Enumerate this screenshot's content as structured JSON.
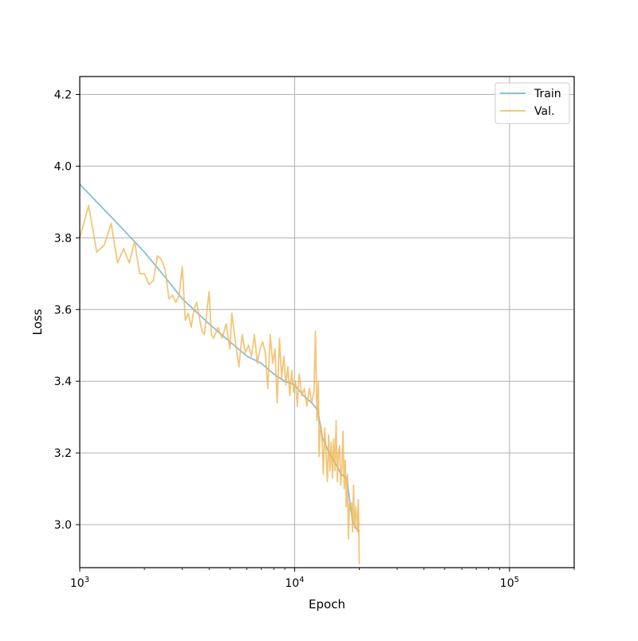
{
  "chart_data": {
    "type": "line",
    "title": "",
    "xlabel": "Epoch",
    "ylabel": "Loss",
    "xscale": "log",
    "xlim": [
      1000,
      200000
    ],
    "ylim": [
      2.88,
      4.25
    ],
    "grid": true,
    "legend_position": "top-right",
    "x_tick_labels": [
      {
        "value": 1000,
        "base": "10",
        "exp": "3"
      },
      {
        "value": 10000,
        "base": "10",
        "exp": "4"
      },
      {
        "value": 100000,
        "base": "10",
        "exp": "5"
      }
    ],
    "y_ticks": [
      3.0,
      3.2,
      3.4,
      3.6,
      3.8,
      4.0,
      4.2
    ],
    "y_tick_labels": [
      "3.0",
      "3.2",
      "3.4",
      "3.6",
      "3.8",
      "4.0",
      "4.2"
    ],
    "series": [
      {
        "name": "Train",
        "color": "#6baed6",
        "points": [
          [
            1000,
            3.95
          ],
          [
            1200,
            3.9
          ],
          [
            1500,
            3.84
          ],
          [
            2000,
            3.76
          ],
          [
            2500,
            3.69
          ],
          [
            3000,
            3.63
          ],
          [
            4000,
            3.56
          ],
          [
            5000,
            3.51
          ],
          [
            6000,
            3.47
          ],
          [
            7000,
            3.45
          ],
          [
            8000,
            3.42
          ],
          [
            9000,
            3.4
          ],
          [
            10000,
            3.39
          ],
          [
            11000,
            3.36
          ],
          [
            12000,
            3.34
          ],
          [
            12800,
            3.32
          ],
          [
            13500,
            3.24
          ],
          [
            14500,
            3.2
          ],
          [
            15500,
            3.17
          ],
          [
            16500,
            3.14
          ],
          [
            17500,
            3.13
          ],
          [
            18200,
            3.05
          ],
          [
            18600,
            3.01
          ],
          [
            19300,
            2.99
          ],
          [
            20000,
            2.98
          ]
        ]
      },
      {
        "name": "Val.",
        "color": "#f0b95a",
        "points": [
          [
            1000,
            3.8
          ],
          [
            1100,
            3.89
          ],
          [
            1200,
            3.76
          ],
          [
            1300,
            3.78
          ],
          [
            1400,
            3.84
          ],
          [
            1500,
            3.73
          ],
          [
            1600,
            3.77
          ],
          [
            1700,
            3.73
          ],
          [
            1800,
            3.79
          ],
          [
            1900,
            3.7
          ],
          [
            2000,
            3.7
          ],
          [
            2100,
            3.67
          ],
          [
            2200,
            3.68
          ],
          [
            2300,
            3.75
          ],
          [
            2400,
            3.74
          ],
          [
            2500,
            3.71
          ],
          [
            2600,
            3.63
          ],
          [
            2700,
            3.64
          ],
          [
            2800,
            3.62
          ],
          [
            2900,
            3.64
          ],
          [
            3000,
            3.72
          ],
          [
            3100,
            3.57
          ],
          [
            3200,
            3.59
          ],
          [
            3300,
            3.55
          ],
          [
            3400,
            3.6
          ],
          [
            3500,
            3.62
          ],
          [
            3700,
            3.54
          ],
          [
            3800,
            3.53
          ],
          [
            4000,
            3.65
          ],
          [
            4100,
            3.53
          ],
          [
            4200,
            3.52
          ],
          [
            4400,
            3.55
          ],
          [
            4600,
            3.52
          ],
          [
            4800,
            3.56
          ],
          [
            5000,
            3.49
          ],
          [
            5100,
            3.59
          ],
          [
            5300,
            3.51
          ],
          [
            5500,
            3.44
          ],
          [
            5700,
            3.53
          ],
          [
            5900,
            3.48
          ],
          [
            6100,
            3.5
          ],
          [
            6300,
            3.47
          ],
          [
            6500,
            3.53
          ],
          [
            6700,
            3.45
          ],
          [
            6900,
            3.49
          ],
          [
            7100,
            3.51
          ],
          [
            7300,
            3.48
          ],
          [
            7500,
            3.38
          ],
          [
            7700,
            3.53
          ],
          [
            7900,
            3.45
          ],
          [
            8100,
            3.49
          ],
          [
            8300,
            3.34
          ],
          [
            8500,
            3.52
          ],
          [
            8700,
            3.41
          ],
          [
            8900,
            3.47
          ],
          [
            9100,
            3.39
          ],
          [
            9300,
            3.44
          ],
          [
            9500,
            3.36
          ],
          [
            9700,
            3.43
          ],
          [
            9900,
            3.37
          ],
          [
            10100,
            3.4
          ],
          [
            10300,
            3.33
          ],
          [
            10500,
            3.42
          ],
          [
            10800,
            3.36
          ],
          [
            11100,
            3.38
          ],
          [
            11400,
            3.33
          ],
          [
            11700,
            3.38
          ],
          [
            12000,
            3.34
          ],
          [
            12300,
            3.37
          ],
          [
            12500,
            3.54
          ],
          [
            12700,
            3.29
          ],
          [
            12900,
            3.4
          ],
          [
            13000,
            3.19
          ],
          [
            13200,
            3.28
          ],
          [
            13400,
            3.25
          ],
          [
            13600,
            3.14
          ],
          [
            13800,
            3.27
          ],
          [
            14000,
            3.2
          ],
          [
            14200,
            3.12
          ],
          [
            14400,
            3.25
          ],
          [
            14600,
            3.15
          ],
          [
            14800,
            3.23
          ],
          [
            15000,
            3.13
          ],
          [
            15200,
            3.24
          ],
          [
            15400,
            3.15
          ],
          [
            15600,
            3.29
          ],
          [
            15800,
            3.12
          ],
          [
            16000,
            3.2
          ],
          [
            16200,
            3.22
          ],
          [
            16400,
            3.11
          ],
          [
            16600,
            3.16
          ],
          [
            16800,
            3.26
          ],
          [
            17000,
            3.1
          ],
          [
            17200,
            3.18
          ],
          [
            17400,
            3.05
          ],
          [
            17600,
            3.14
          ],
          [
            17800,
            2.96
          ],
          [
            18000,
            3.06
          ],
          [
            18200,
            3.05
          ],
          [
            18400,
            3.06
          ],
          [
            18600,
            2.98
          ],
          [
            18800,
            3.11
          ],
          [
            19000,
            2.99
          ],
          [
            19300,
            3.05
          ],
          [
            19600,
            2.98
          ],
          [
            19800,
            3.07
          ],
          [
            20000,
            2.89
          ]
        ]
      }
    ]
  }
}
